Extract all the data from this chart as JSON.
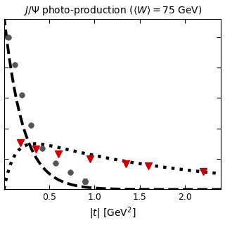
{
  "title": "$J/\\Psi$ photo-production ($\\langle W\\rangle = 75$ GeV)",
  "xlabel": "$|t|$ [GeV$^2$]",
  "xlim": [
    0,
    2.4
  ],
  "circle_data": {
    "x": [
      0.05,
      0.12,
      0.2,
      0.3,
      0.42,
      0.57,
      0.73,
      0.9
    ],
    "y": [
      1.0,
      0.82,
      0.62,
      0.42,
      0.27,
      0.175,
      0.115,
      0.055
    ],
    "yerr_abs": [
      0.0,
      0.0,
      0.0,
      0.0,
      0.0,
      0.0,
      0.0,
      0.018
    ],
    "color": "#555555",
    "marker": "o",
    "size": 5.5
  },
  "triangle_data": {
    "x": [
      0.18,
      0.35,
      0.6,
      0.95,
      1.35,
      1.6,
      2.2
    ],
    "y": [
      0.305,
      0.265,
      0.235,
      0.2,
      0.17,
      0.155,
      0.118
    ],
    "color": "#cc0000",
    "marker": "v",
    "size": 7
  },
  "dashed_params": {
    "A": 1.15,
    "b": 4.8,
    "color": "black",
    "style": "--",
    "linewidth": 2.8
  },
  "dotted_params": {
    "A": 0.3,
    "rise": 8.0,
    "decay": 0.55,
    "color": "black",
    "style": ":",
    "linewidth": 3.2
  },
  "background_color": "#ffffff",
  "xticks": [
    0.5,
    1.0,
    1.5,
    2.0
  ],
  "title_fontsize": 10,
  "axis_label_fontsize": 10
}
